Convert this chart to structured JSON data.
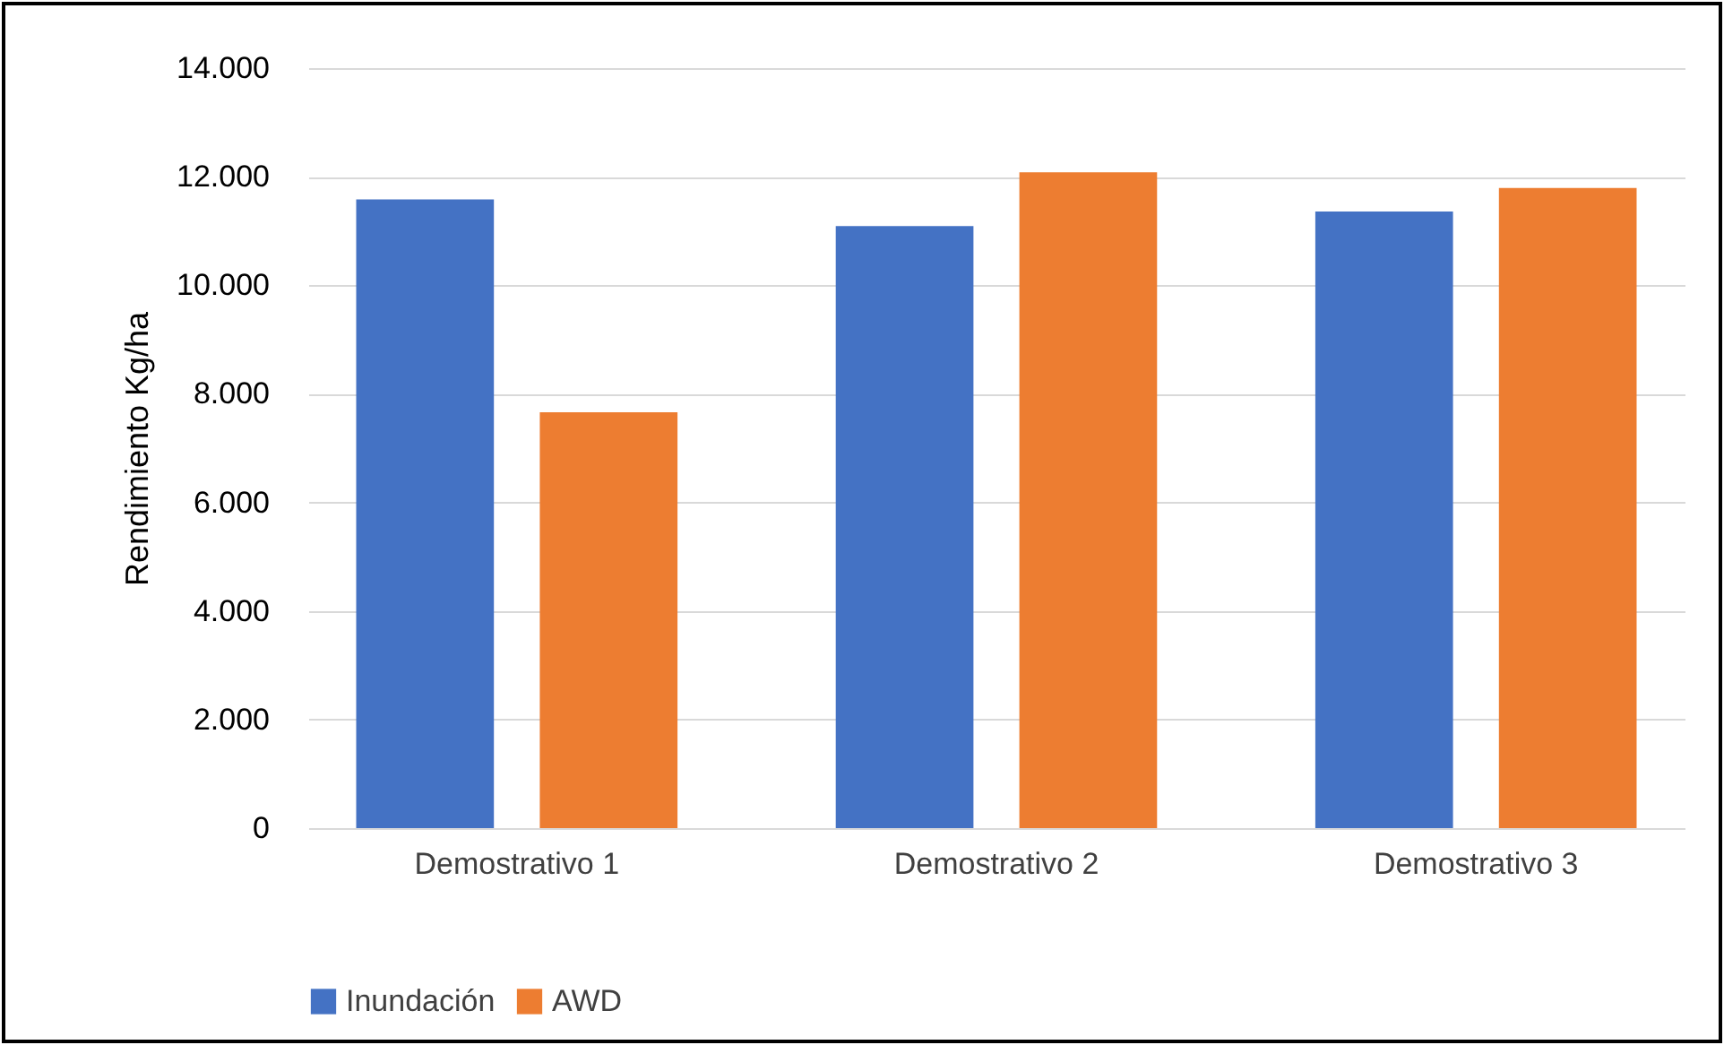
{
  "chart_data": {
    "type": "bar",
    "categories": [
      "Demostrativo 1",
      "Demostrativo 2",
      "Demostrativo 3"
    ],
    "series": [
      {
        "name": "Inundación",
        "color": "#4472c4",
        "values": [
          11580,
          11090,
          11360
        ]
      },
      {
        "name": "AWD",
        "color": "#ed7d31",
        "values": [
          7660,
          12080,
          11790
        ]
      }
    ],
    "ylabel": "Rendimiento Kg/ha",
    "ylim": [
      0,
      14000
    ],
    "yticks": [
      0,
      {
        "value": 2000,
        "label": "2.000"
      },
      {
        "value": 4000,
        "label": "4.000"
      },
      {
        "value": 6000,
        "label": "6.000"
      },
      {
        "value": 8000,
        "label": "8.000"
      },
      {
        "value": 10000,
        "label": "10.000"
      },
      {
        "value": 12000,
        "label": "12.000"
      },
      {
        "value": 14000,
        "label": "14.000"
      }
    ],
    "grid": "y",
    "legend": "bottom"
  }
}
